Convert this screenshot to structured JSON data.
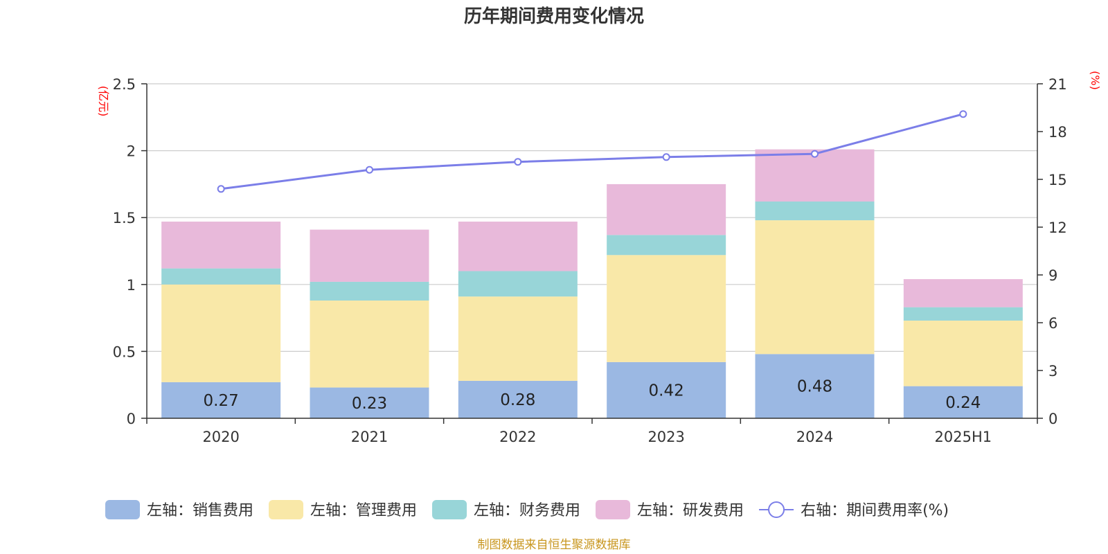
{
  "chart_data": {
    "type": "bar",
    "stacked": true,
    "title": "历年期间费用变化情况",
    "categories": [
      "2020",
      "2021",
      "2022",
      "2023",
      "2024",
      "2025H1"
    ],
    "left_axis": {
      "unit": "(亿元)",
      "ylim": [
        0,
        2.5
      ],
      "ticks": [
        "0",
        "0.5",
        "1",
        "1.5",
        "2",
        "2.5"
      ],
      "tick_values": [
        0,
        0.5,
        1,
        1.5,
        2,
        2.5
      ]
    },
    "right_axis": {
      "unit": "(%)",
      "ylim": [
        0,
        21
      ],
      "ticks": [
        "0",
        "3",
        "6",
        "9",
        "12",
        "15",
        "18",
        "21"
      ],
      "tick_values": [
        0,
        3,
        6,
        9,
        12,
        15,
        18,
        21
      ]
    },
    "series": [
      {
        "name": "左轴：销售费用",
        "axis": "left",
        "color": "#9bb8e3",
        "values": [
          0.27,
          0.23,
          0.28,
          0.42,
          0.48,
          0.24
        ],
        "labels": [
          "0.27",
          "0.23",
          "0.28",
          "0.42",
          "0.48",
          "0.24"
        ]
      },
      {
        "name": "左轴：管理费用",
        "axis": "left",
        "color": "#f9e8a8",
        "values": [
          0.73,
          0.65,
          0.63,
          0.8,
          1.0,
          0.49
        ]
      },
      {
        "name": "左轴：财务费用",
        "axis": "left",
        "color": "#98d5d8",
        "values": [
          0.12,
          0.14,
          0.19,
          0.15,
          0.14,
          0.1
        ]
      },
      {
        "name": "左轴：研发费用",
        "axis": "left",
        "color": "#e8b9da",
        "values": [
          0.35,
          0.39,
          0.37,
          0.38,
          0.39,
          0.21
        ]
      },
      {
        "name": "右轴：期间费用率(%)",
        "axis": "right",
        "type": "line",
        "color": "#7b7ee8",
        "values": [
          14.4,
          15.6,
          16.1,
          16.4,
          16.6,
          19.1
        ]
      }
    ],
    "grid": true,
    "legend": "bottom"
  },
  "source": "制图数据来自恒生聚源数据库"
}
